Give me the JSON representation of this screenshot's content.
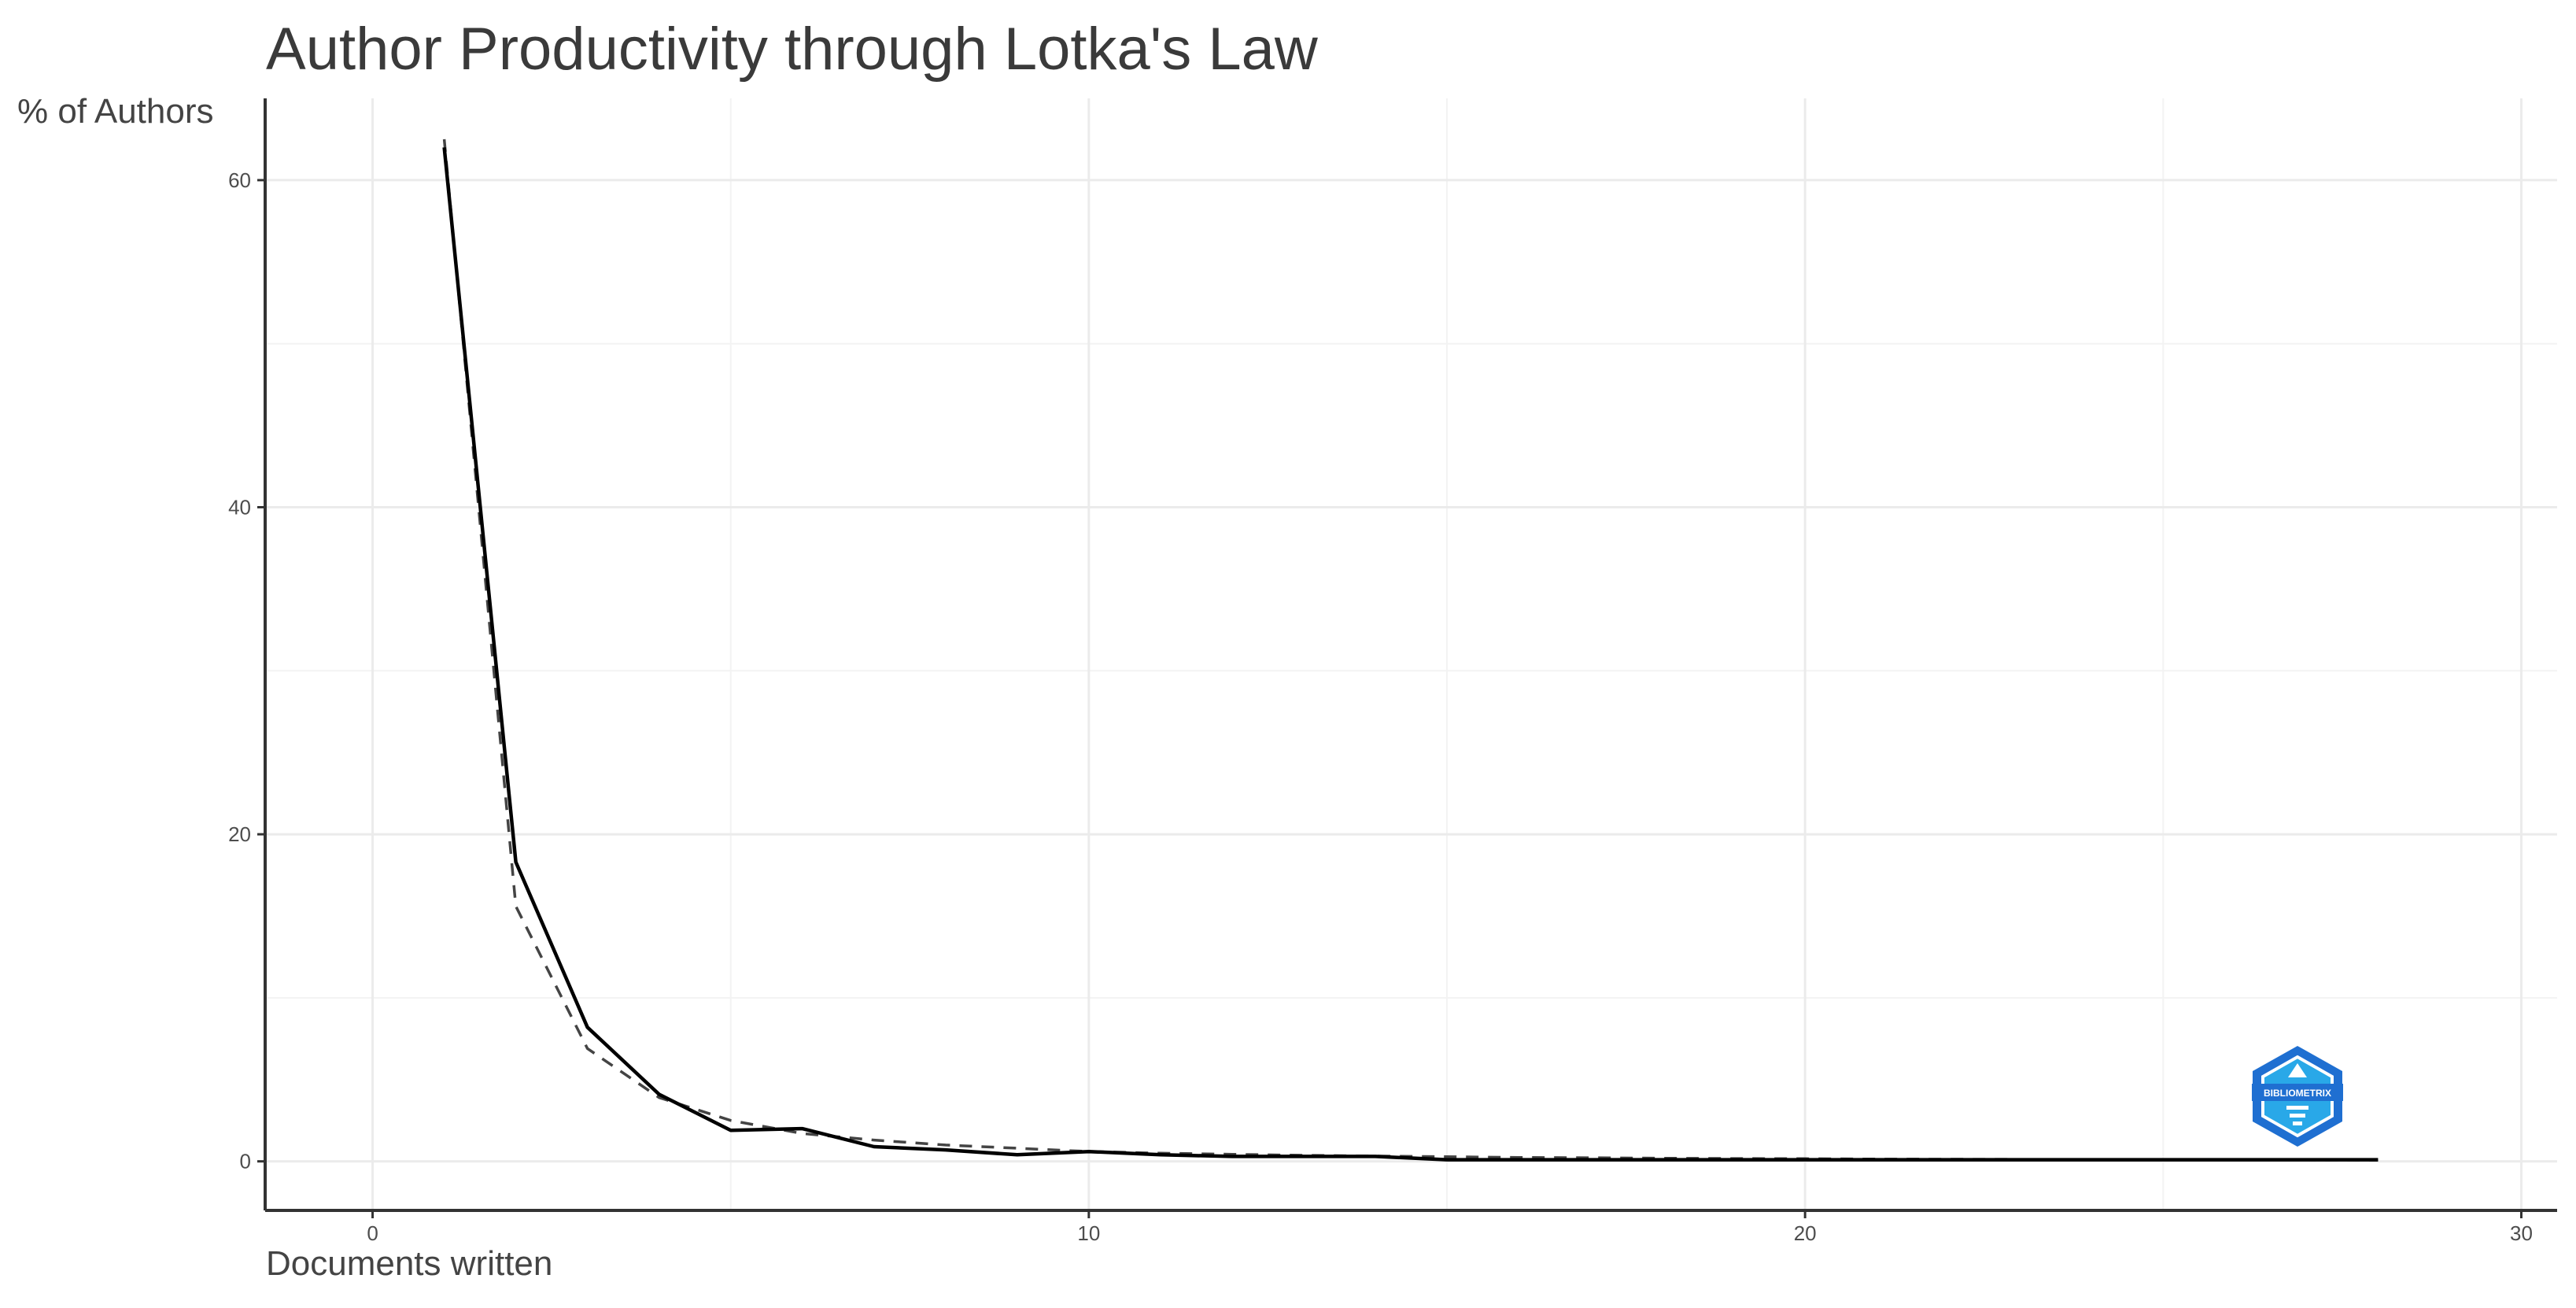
{
  "chart_data": {
    "type": "line",
    "title": "Author Productivity through Lotka's Law",
    "xlabel": "Documents written",
    "ylabel": "% of Authors",
    "xlim": [
      -1.5,
      30.5
    ],
    "ylim": [
      -3,
      65
    ],
    "x_ticks": [
      0,
      10,
      20,
      30
    ],
    "y_ticks": [
      0,
      20,
      40,
      60
    ],
    "grid": true,
    "series": [
      {
        "line_style": "solid",
        "x": [
          1,
          2,
          3,
          4,
          5,
          6,
          7,
          8,
          9,
          10,
          11,
          12,
          13,
          14,
          15,
          16,
          17,
          18,
          19,
          20,
          21,
          22,
          23,
          24,
          25,
          26,
          27,
          28
        ],
        "y": [
          62,
          18.3,
          8.2,
          4.1,
          1.9,
          2.0,
          0.9,
          0.7,
          0.4,
          0.6,
          0.4,
          0.3,
          0.3,
          0.3,
          0.1,
          0.1,
          0.1,
          0.1,
          0.1,
          0.1,
          0.1,
          0.1,
          0.1,
          0.1,
          0.1,
          0.1,
          0.1,
          0.1
        ]
      },
      {
        "line_style": "dashed",
        "x": [
          1,
          2,
          3,
          4,
          5,
          6,
          7,
          8,
          9,
          10,
          11,
          12,
          13,
          14,
          15,
          16,
          17,
          18,
          19,
          20,
          21,
          22,
          23,
          24,
          25,
          26,
          27,
          28
        ],
        "y": [
          62.5,
          15.6,
          6.9,
          3.9,
          2.5,
          1.7,
          1.3,
          1.0,
          0.8,
          0.6,
          0.5,
          0.43,
          0.37,
          0.32,
          0.28,
          0.24,
          0.22,
          0.19,
          0.17,
          0.16,
          0.14,
          0.13,
          0.12,
          0.11,
          0.1,
          0.09,
          0.09,
          0.08
        ]
      }
    ]
  },
  "colors": {
    "observed_line": "#000000",
    "theoretical_line": "#444444",
    "logo_primary": "#1f6fd1",
    "logo_secondary": "#29a8e8"
  },
  "logo": {
    "icon": "bibliometrix-hexagon-logo",
    "text": "BIBLIOMETRIX"
  }
}
